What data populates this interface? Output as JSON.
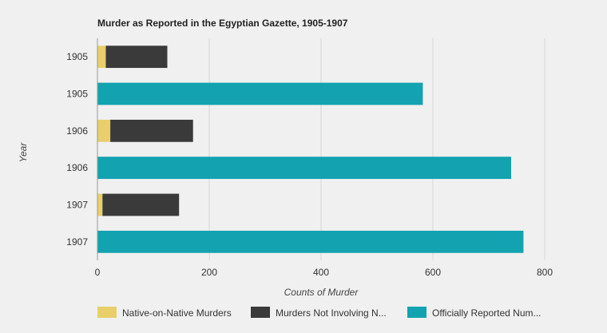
{
  "chart_data": {
    "type": "bar",
    "orientation": "horizontal",
    "stacked": true,
    "title": "Murder as Reported in the Egyptian Gazette, 1905-1907",
    "xlabel": "Counts of Murder",
    "ylabel": "Year",
    "xlim": [
      0,
      800
    ],
    "xticks": [
      0,
      200,
      400,
      600,
      800
    ],
    "grid": true,
    "legend_position": "bottom",
    "categories": [
      "1905",
      "1905",
      "1906",
      "1906",
      "1907",
      "1907"
    ],
    "series": [
      {
        "name": "Native-on-Native Murders",
        "legend_label": "Native-on-Native Murders",
        "color": "#e8cf6a",
        "values": [
          15,
          0,
          23,
          0,
          9,
          0
        ]
      },
      {
        "name": "Murders Not Involving Natives",
        "legend_label": "Murders Not Involving N...",
        "color": "#3a3a3a",
        "values": [
          110,
          0,
          148,
          0,
          137,
          0
        ]
      },
      {
        "name": "Officially Reported Numbers",
        "legend_label": "Officially Reported Num...",
        "color": "#12a2b0",
        "values": [
          0,
          582,
          0,
          740,
          0,
          762
        ]
      }
    ]
  }
}
